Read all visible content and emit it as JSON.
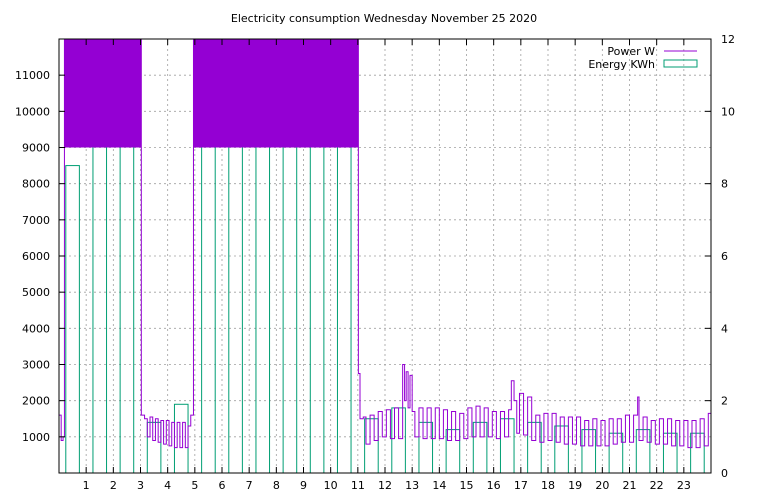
{
  "chart_data": {
    "type": "line",
    "title": "Electricity consumption Wednesday November 25 2020",
    "xlabel": "",
    "ylabel": "",
    "y2label": "",
    "xlim": [
      0,
      24
    ],
    "ylim": [
      0,
      12000
    ],
    "y2lim": [
      0,
      12
    ],
    "x_ticks": [
      1,
      2,
      3,
      4,
      5,
      6,
      7,
      8,
      9,
      10,
      11,
      12,
      13,
      14,
      15,
      16,
      17,
      18,
      19,
      20,
      21,
      22,
      23
    ],
    "y_ticks": [
      1000,
      2000,
      3000,
      4000,
      5000,
      6000,
      7000,
      8000,
      9000,
      10000,
      11000
    ],
    "y2_ticks": [
      0,
      2,
      4,
      6,
      8,
      10,
      12
    ],
    "grid": true,
    "legend_position": "top-right",
    "colors": {
      "power": "#9400d3",
      "energy": "#009e73"
    },
    "series": [
      {
        "name": "Power W",
        "axis": "left",
        "style": "steps",
        "points": [
          [
            0.0,
            1600
          ],
          [
            0.08,
            900
          ],
          [
            0.15,
            1000
          ],
          [
            0.2,
            13000
          ],
          [
            3.0,
            13000
          ],
          [
            3.03,
            1600
          ],
          [
            3.15,
            1500
          ],
          [
            3.25,
            1000
          ],
          [
            3.35,
            1550
          ],
          [
            3.45,
            900
          ],
          [
            3.55,
            1500
          ],
          [
            3.65,
            850
          ],
          [
            3.75,
            1450
          ],
          [
            3.85,
            800
          ],
          [
            3.95,
            1450
          ],
          [
            4.05,
            750
          ],
          [
            4.15,
            1400
          ],
          [
            4.25,
            700
          ],
          [
            4.35,
            1400
          ],
          [
            4.45,
            700
          ],
          [
            4.55,
            1400
          ],
          [
            4.65,
            700
          ],
          [
            4.75,
            1300
          ],
          [
            4.85,
            1600
          ],
          [
            4.95,
            13000
          ],
          [
            11.0,
            13000
          ],
          [
            11.02,
            2750
          ],
          [
            11.08,
            1500
          ],
          [
            11.2,
            1550
          ],
          [
            11.3,
            800
          ],
          [
            11.45,
            1600
          ],
          [
            11.6,
            900
          ],
          [
            11.75,
            1700
          ],
          [
            11.9,
            1000
          ],
          [
            12.05,
            1750
          ],
          [
            12.2,
            950
          ],
          [
            12.35,
            1800
          ],
          [
            12.5,
            950
          ],
          [
            12.65,
            3000
          ],
          [
            12.72,
            2000
          ],
          [
            12.78,
            2800
          ],
          [
            12.85,
            1800
          ],
          [
            12.92,
            2700
          ],
          [
            13.0,
            1700
          ],
          [
            13.1,
            1000
          ],
          [
            13.25,
            1800
          ],
          [
            13.4,
            950
          ],
          [
            13.55,
            1800
          ],
          [
            13.7,
            950
          ],
          [
            13.85,
            1800
          ],
          [
            14.0,
            950
          ],
          [
            14.15,
            1750
          ],
          [
            14.3,
            900
          ],
          [
            14.45,
            1700
          ],
          [
            14.6,
            900
          ],
          [
            14.75,
            1650
          ],
          [
            14.9,
            950
          ],
          [
            15.05,
            1800
          ],
          [
            15.2,
            1000
          ],
          [
            15.35,
            1850
          ],
          [
            15.5,
            1000
          ],
          [
            15.65,
            1800
          ],
          [
            15.8,
            1000
          ],
          [
            15.95,
            1700
          ],
          [
            16.1,
            950
          ],
          [
            16.25,
            1700
          ],
          [
            16.4,
            1000
          ],
          [
            16.55,
            1750
          ],
          [
            16.65,
            2550
          ],
          [
            16.75,
            2000
          ],
          [
            16.85,
            1100
          ],
          [
            16.95,
            2200
          ],
          [
            17.1,
            1050
          ],
          [
            17.25,
            2100
          ],
          [
            17.4,
            900
          ],
          [
            17.55,
            1600
          ],
          [
            17.7,
            850
          ],
          [
            17.85,
            1650
          ],
          [
            18.0,
            900
          ],
          [
            18.15,
            1650
          ],
          [
            18.3,
            850
          ],
          [
            18.45,
            1550
          ],
          [
            18.6,
            800
          ],
          [
            18.75,
            1550
          ],
          [
            18.9,
            800
          ],
          [
            19.05,
            1550
          ],
          [
            19.2,
            750
          ],
          [
            19.35,
            1450
          ],
          [
            19.5,
            750
          ],
          [
            19.65,
            1500
          ],
          [
            19.8,
            750
          ],
          [
            19.95,
            1450
          ],
          [
            20.1,
            750
          ],
          [
            20.25,
            1500
          ],
          [
            20.4,
            800
          ],
          [
            20.55,
            1500
          ],
          [
            20.7,
            850
          ],
          [
            20.85,
            1600
          ],
          [
            21.0,
            850
          ],
          [
            21.15,
            1600
          ],
          [
            21.3,
            2100
          ],
          [
            21.35,
            900
          ],
          [
            21.5,
            1550
          ],
          [
            21.65,
            850
          ],
          [
            21.8,
            1450
          ],
          [
            21.95,
            800
          ],
          [
            22.1,
            1500
          ],
          [
            22.25,
            800
          ],
          [
            22.4,
            1500
          ],
          [
            22.55,
            750
          ],
          [
            22.7,
            1450
          ],
          [
            22.85,
            750
          ],
          [
            23.0,
            1450
          ],
          [
            23.15,
            700
          ],
          [
            23.3,
            1450
          ],
          [
            23.45,
            700
          ],
          [
            23.6,
            1500
          ],
          [
            23.75,
            750
          ],
          [
            23.9,
            1650
          ],
          [
            24.0,
            1650
          ]
        ]
      },
      {
        "name": "Energy KWh",
        "axis": "right",
        "style": "boxes",
        "x": [
          0,
          1,
          2,
          3,
          4,
          5,
          6,
          7,
          8,
          9,
          10,
          11,
          12,
          13,
          14,
          15,
          16,
          17,
          18,
          19,
          20,
          21,
          22,
          23
        ],
        "values": [
          8.5,
          10.0,
          10.0,
          1.4,
          1.9,
          9.8,
          9.9,
          9.9,
          10.0,
          10.2,
          9.9,
          1.5,
          1.8,
          1.4,
          1.2,
          1.4,
          1.5,
          1.4,
          1.3,
          1.2,
          1.1,
          1.2,
          1.1,
          1.1
        ]
      }
    ]
  }
}
